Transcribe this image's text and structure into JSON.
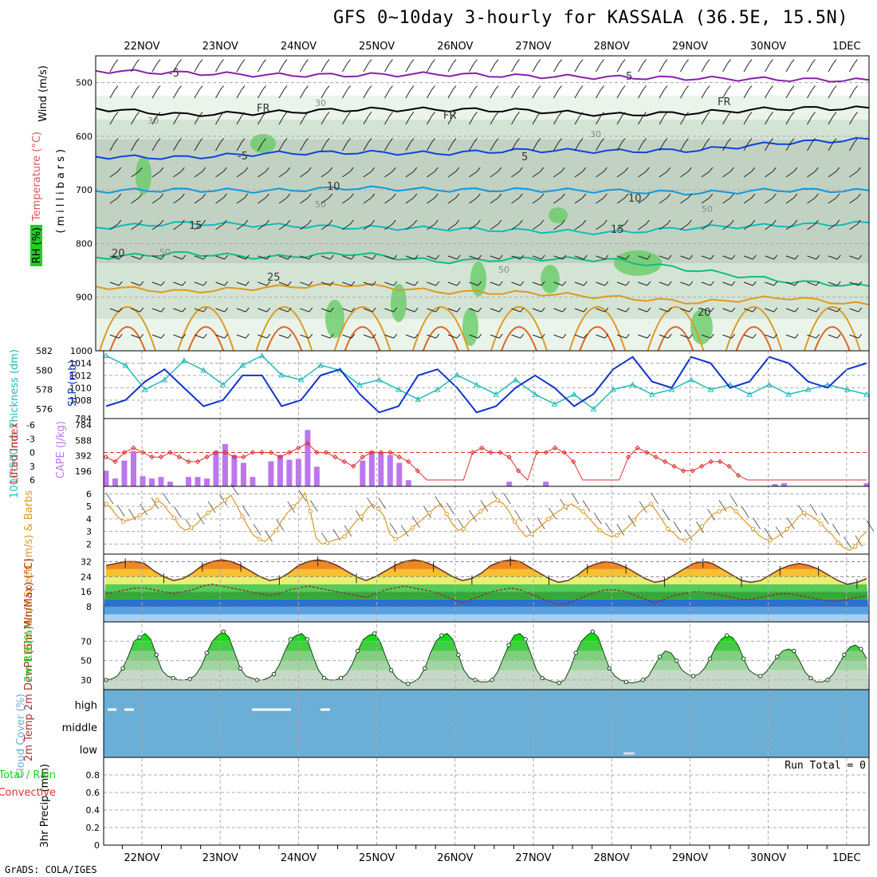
{
  "title": "GFS 0~10day 3-hourly for KASSALA (36.5E, 15.5N)",
  "credit": "GrADS: COLA/IGES",
  "days": [
    "22NOV",
    "23NOV",
    "24NOV",
    "25NOV",
    "26NOV",
    "27NOV",
    "28NOV",
    "29NOV",
    "30NOV",
    "1DEC"
  ],
  "colors": {
    "grid": "#aaaaaa",
    "cloud": "#6baed6",
    "rh": "#22cc22",
    "wind": "#dd9922",
    "slp": "#1133cc",
    "thick": "#22bbbb",
    "li": "#dd3333",
    "cape": "#bb77ee"
  },
  "chart_data": [
    {
      "type": "heatmap",
      "panel": "upper-air",
      "ylabels": [
        "Temperature (°C)",
        "Wind (m/s)",
        "RH (%)",
        "(millibars)"
      ],
      "yticks": [
        500,
        600,
        700,
        800,
        900,
        1000
      ],
      "ylim": [
        450,
        1000
      ],
      "isotherm_labels": [
        "-5",
        "5",
        "FR",
        "FR",
        "FR",
        "-5",
        "5",
        "10",
        "10",
        "15",
        "15",
        "20",
        "20",
        "25"
      ],
      "rh_labels": [
        "30",
        "30",
        "30",
        "50",
        "50",
        "50",
        "50"
      ],
      "isotherms": [
        {
          "name": "-5",
          "color": "#8822aa",
          "values": [
            478,
            482,
            486,
            486,
            484,
            488,
            490,
            492,
            494,
            496
          ]
        },
        {
          "name": "FR",
          "color": "#000000",
          "values": [
            548,
            560,
            556,
            550,
            550,
            552,
            560,
            556,
            548,
            548
          ]
        },
        {
          "name": "5",
          "color": "#1144dd",
          "values": [
            638,
            640,
            632,
            630,
            632,
            626,
            628,
            626,
            612,
            606
          ]
        },
        {
          "name": "10",
          "color": "#1199dd",
          "values": [
            702,
            700,
            702,
            696,
            700,
            700,
            702,
            706,
            700,
            702
          ]
        },
        {
          "name": "15",
          "color": "#11bbbb",
          "values": [
            770,
            762,
            766,
            770,
            772,
            776,
            780,
            770,
            766,
            762
          ]
        },
        {
          "name": "20",
          "color": "#11bb88",
          "values": [
            826,
            818,
            826,
            818,
            834,
            828,
            830,
            850,
            870,
            880
          ]
        },
        {
          "name": "25",
          "color": "#dd9922",
          "values": [
            880,
            890,
            882,
            876,
            890,
            892,
            900,
            910,
            900,
            915
          ]
        }
      ]
    },
    {
      "type": "line",
      "panel": "thickness-slp",
      "ylabel_left": "1000-500mb Thickness (dm)",
      "ylabel_right": "SLP (mb)",
      "left_ticks": [
        576,
        578,
        580,
        582
      ],
      "left_ylim": [
        575,
        582
      ],
      "right_ticks": [
        1008,
        1010,
        1012,
        1014
      ],
      "right_ylim": [
        1005,
        1016
      ],
      "series": [
        {
          "name": "Thickness",
          "values": [
            581.5,
            580.5,
            578,
            579,
            581,
            580,
            578.5,
            580.5,
            581.5,
            579.5,
            579,
            580.5,
            580,
            578.5,
            579,
            578,
            577,
            578,
            579.5,
            578.5,
            577.5,
            579,
            577.5,
            576.5,
            577.5,
            576,
            578,
            578.5,
            577.5,
            578,
            579,
            578,
            578.5,
            577.5,
            578.5,
            577.5,
            578,
            578.5,
            578,
            577.5
          ]
        },
        {
          "name": "SLP",
          "values": [
            1007,
            1008,
            1011,
            1013,
            1010,
            1007,
            1008,
            1012,
            1012,
            1007,
            1008,
            1012,
            1013,
            1009,
            1006,
            1007,
            1012,
            1013,
            1010,
            1006,
            1007,
            1010,
            1012,
            1010,
            1007,
            1009,
            1013,
            1015,
            1011,
            1010,
            1015,
            1014,
            1010,
            1011,
            1015,
            1014,
            1011,
            1010,
            1013,
            1014
          ]
        }
      ]
    },
    {
      "type": "bar",
      "panel": "lifted-index-cape",
      "ylabel_left": "Lifted Index",
      "ylabel_right": "CAPE (J/kg)",
      "li_ticks": [
        "-6",
        "-3",
        "0",
        "3",
        "6"
      ],
      "cape_ticks": [
        "196",
        "392",
        "588",
        "784"
      ],
      "cape_ylim": [
        0,
        784
      ],
      "cape_values": [
        200,
        100,
        330,
        450,
        130,
        100,
        120,
        60,
        0,
        120,
        120,
        100,
        450,
        540,
        400,
        300,
        120,
        0,
        320,
        400,
        340,
        350,
        720,
        250,
        0,
        0,
        0,
        0,
        330,
        450,
        440,
        400,
        300,
        80,
        0,
        0,
        0,
        0,
        0,
        0,
        0,
        0,
        0,
        0,
        60,
        0,
        10,
        0,
        60,
        0,
        0,
        0,
        0,
        0,
        0,
        0,
        0,
        0,
        0,
        0,
        0,
        0,
        0,
        0,
        0,
        0,
        0,
        0,
        0,
        0,
        0,
        0,
        0,
        30,
        40,
        0,
        0,
        0,
        0,
        0,
        0,
        0,
        0,
        40
      ],
      "li_values": [
        1,
        2,
        0,
        -1,
        0,
        1,
        1,
        0,
        1,
        2,
        2,
        1,
        0,
        0,
        1,
        1,
        0,
        0,
        0,
        1,
        0,
        -1,
        -2,
        0,
        0,
        1,
        2,
        3,
        1,
        0,
        0,
        0,
        1,
        2,
        4,
        6,
        6,
        6,
        6,
        6,
        0,
        -1,
        0,
        0,
        1,
        4,
        6,
        0,
        0,
        -1,
        0,
        2,
        6,
        6,
        6,
        6,
        6,
        1,
        -1,
        0,
        1,
        2,
        3,
        4,
        4,
        3,
        2,
        2,
        3,
        5,
        6,
        6,
        6,
        6,
        6,
        6,
        6,
        6,
        6,
        6,
        6,
        6,
        6,
        6
      ]
    },
    {
      "type": "line",
      "panel": "10m-wind",
      "ylabel": "10m Wind Speed (m/s) & Barbs",
      "yticks": [
        2,
        3,
        4,
        5,
        6
      ],
      "ylim": [
        1.2,
        6.6
      ],
      "values": [
        5.2,
        4.8,
        4.2,
        3.8,
        3.9,
        4.1,
        4.3,
        4.6,
        4.8,
        5.5,
        5.2,
        4.6,
        4.1,
        3.4,
        3.1,
        3.3,
        3.6,
        4.1,
        4.5,
        4.8,
        5.1,
        5.5,
        5.9,
        5.1,
        4.2,
        3.4,
        2.7,
        2.4,
        2.2,
        2.6,
        3.1,
        3.9,
        4.5,
        5.0,
        5.4,
        6.1,
        4.6,
        2.5,
        2.0,
        2.1,
        2.3,
        2.4,
        2.6,
        3.2,
        3.8,
        4.2,
        4.8,
        5.2,
        4.8,
        4.2,
        2.8,
        2.4,
        2.6,
        2.9,
        3.3,
        3.7,
        4.1,
        4.5,
        4.9,
        5.2,
        4.4,
        3.6,
        3.1,
        3.2,
        3.8,
        4.2,
        4.6,
        5.0,
        5.3,
        5.5,
        5.2,
        4.6,
        3.8,
        3.1,
        2.6,
        2.8,
        3.2,
        3.6,
        4.0,
        4.4,
        4.7,
        5.0,
        5.2,
        4.9,
        4.6,
        4.1,
        3.6,
        3.1,
        2.8,
        2.6,
        2.7,
        3.0,
        3.4,
        3.9,
        4.5,
        4.9,
        5.2,
        4.6,
        3.9,
        3.2,
        2.9,
        2.4,
        2.3,
        2.5,
        2.9,
        3.4,
        3.9,
        4.4,
        4.6,
        4.8,
        5.0,
        4.6,
        4.1,
        3.6,
        3.2,
        2.7,
        2.4,
        2.3,
        2.5,
        2.8,
        3.2,
        3.6,
        4.2,
        4.5,
        4.3,
        4.0,
        3.6,
        3.1,
        2.7,
        2.1,
        1.7,
        1.5,
        1.8,
        2.6,
        3.0
      ]
    },
    {
      "type": "area",
      "panel": "2m-temp",
      "ylabel": "2m Temp 2m DewPt (6hr Min/Max) (°C)",
      "yticks": [
        8,
        16,
        24,
        32
      ],
      "ylim": [
        0,
        36
      ],
      "temp_values": [
        30,
        31,
        32,
        32,
        31,
        27,
        24,
        22,
        23,
        26,
        30,
        32,
        33,
        32,
        30,
        27,
        24,
        22,
        23,
        26,
        30,
        32,
        33,
        32,
        30,
        27,
        24,
        22,
        24,
        27,
        30,
        32,
        33,
        32,
        30,
        27,
        24,
        22,
        23,
        26,
        30,
        32,
        33,
        32,
        29,
        26,
        23,
        21,
        22,
        25,
        29,
        31,
        32,
        31,
        29,
        26,
        23,
        21,
        22,
        25,
        28,
        31,
        32,
        31,
        28,
        25,
        22,
        21,
        22,
        25,
        28,
        30,
        31,
        30,
        28,
        25,
        22,
        20,
        21,
        23
      ],
      "dew_values": [
        15,
        16,
        17,
        18,
        18,
        17,
        16,
        15,
        16,
        17,
        19,
        20,
        19,
        18,
        17,
        16,
        15,
        14,
        15,
        17,
        18,
        19,
        18,
        17,
        16,
        15,
        14,
        13,
        15,
        17,
        18,
        19,
        18,
        17,
        16,
        14,
        12,
        10,
        12,
        14,
        16,
        17,
        18,
        17,
        15,
        13,
        11,
        9,
        10,
        12,
        14,
        16,
        17,
        17,
        16,
        14,
        12,
        10,
        12,
        14,
        15,
        16,
        16,
        15,
        14,
        13,
        12,
        12,
        13,
        14,
        15,
        15,
        14,
        13,
        12,
        11,
        11,
        12,
        13,
        14
      ]
    },
    {
      "type": "area",
      "panel": "2m-rh",
      "ylabel": "2m RH (%)",
      "yticks": [
        30,
        50,
        70
      ],
      "ylim": [
        20,
        90
      ],
      "values": [
        30,
        31,
        34,
        42,
        55,
        70,
        74,
        78,
        72,
        56,
        40,
        34,
        32,
        30,
        30,
        31,
        35,
        44,
        58,
        70,
        76,
        80,
        74,
        58,
        42,
        34,
        32,
        30,
        30,
        32,
        36,
        46,
        60,
        72,
        76,
        78,
        72,
        55,
        40,
        32,
        30,
        30,
        32,
        36,
        46,
        60,
        72,
        76,
        78,
        70,
        54,
        40,
        32,
        28,
        26,
        28,
        32,
        42,
        58,
        70,
        76,
        78,
        72,
        56,
        40,
        32,
        30,
        28,
        28,
        30,
        38,
        52,
        66,
        76,
        78,
        72,
        56,
        40,
        32,
        30,
        28,
        27,
        30,
        42,
        58,
        70,
        76,
        80,
        74,
        58,
        42,
        34,
        30,
        28,
        27,
        28,
        30,
        34,
        44,
        54,
        60,
        58,
        50,
        40,
        36,
        34,
        36,
        42,
        52,
        64,
        72,
        76,
        74,
        66,
        52,
        40,
        36,
        34,
        38,
        46,
        54,
        60,
        62,
        60,
        50,
        38,
        32,
        28,
        28,
        30,
        36,
        46,
        56,
        64,
        66,
        62,
        52
      ]
    },
    {
      "type": "heatmap",
      "panel": "cloud-cover",
      "ylabel": "Cloud Cover (%)",
      "levels": [
        "high",
        "middle",
        "low"
      ],
      "overall": "overcast"
    },
    {
      "type": "bar",
      "panel": "3hr-precip",
      "ylabel": "3hr Precip (mm)",
      "legend": [
        "Total / Rain",
        "Convective"
      ],
      "yticks": [
        "0",
        "0.2",
        "0.4",
        "0.6",
        "0.8"
      ],
      "ylim": [
        0,
        1
      ],
      "values": [],
      "annotation": "Run Total = 0"
    }
  ]
}
